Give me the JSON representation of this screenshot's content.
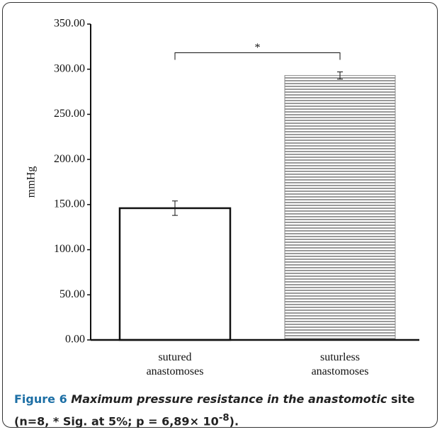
{
  "chart_data": {
    "type": "bar",
    "categories": [
      "sutured anastomoses",
      "suturless anastomoses"
    ],
    "values": [
      146,
      293
    ],
    "errors": [
      8,
      4
    ],
    "bar_fills": [
      "#ffffff",
      "#9a9a9a"
    ],
    "bar_patterns": [
      "none",
      "horizontal-lines"
    ],
    "y_label": "mmHg",
    "annotation": "*",
    "ylim": [
      0,
      350
    ],
    "yticks": [
      {
        "value": 0,
        "label": "0.00"
      },
      {
        "value": 50,
        "label": "50.00"
      },
      {
        "value": 100,
        "label": "100.00"
      },
      {
        "value": 150,
        "label": "150.00"
      },
      {
        "value": 200,
        "label": "200.00"
      },
      {
        "value": 250,
        "label": "250.00"
      },
      {
        "value": 300,
        "label": "300.00"
      },
      {
        "value": 350,
        "label": "350.00"
      }
    ],
    "grid": false
  },
  "caption": {
    "label": "Figure 6",
    "italic": "Maximum pressure resistance in the anastomotic",
    "text": " site (n=8, * Sig. at 5%; p = 6,89× 10",
    "sup": "-8",
    "end": ")."
  }
}
